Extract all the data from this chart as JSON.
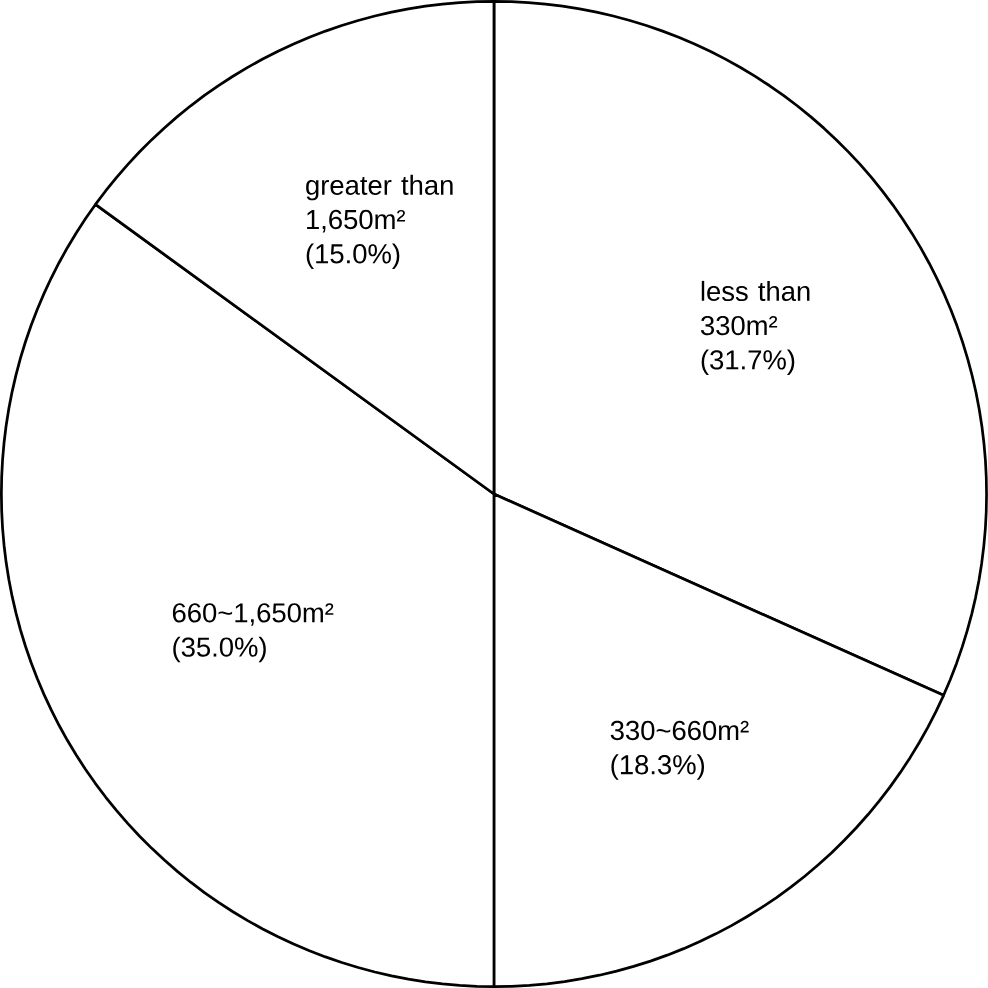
{
  "chart_data": {
    "type": "pie",
    "categories": [
      "less than 330m²",
      "330~660m²",
      "660~1,650m²",
      "greater than 1,650m²"
    ],
    "values": [
      31.7,
      18.3,
      35.0,
      15.0
    ],
    "colors": [
      "#ffffff",
      "#ffffff",
      "#ffffff",
      "#ffffff"
    ],
    "value_labels": [
      "(31.7%)",
      "(18.3%)",
      "(35.0%)",
      "(15.0%)"
    ]
  }
}
